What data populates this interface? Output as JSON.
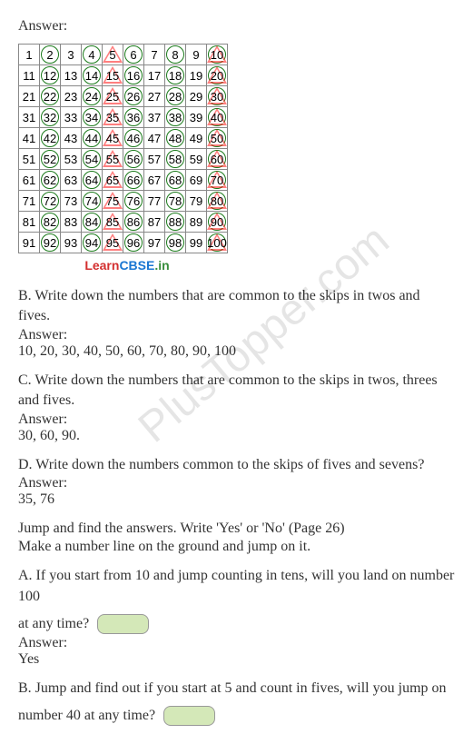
{
  "answer_label": "Answer:",
  "grid": {
    "rows": 10,
    "cols": 10,
    "cell_border_color": "#888",
    "circle_color": "#1a7a1a",
    "triangle_color": "rgba(255,0,0,0.5)"
  },
  "learncbse": {
    "learn": "Learn",
    "cbse": "CBSE",
    "in": ".in"
  },
  "qB": {
    "text": "B. Write down the numbers that are common to the skips in twos and fives.",
    "ans_label": "Answer:",
    "ans": "10, 20, 30, 40, 50, 60, 70, 80, 90, 100"
  },
  "qC": {
    "text": "C. Write down the numbers that are common to the skips in twos, threes and fives.",
    "ans_label": "Answer:",
    "ans": "30, 60, 90."
  },
  "qD": {
    "text": "D. Write down the numbers common to the skips of fives and sevens?",
    "ans_label": "Answer:",
    "ans": "35, 76"
  },
  "jump_intro1": "Jump and find the answers. Write 'Yes' or 'No' (Page 26)",
  "jump_intro2": "Make a number line on the ground and jump on it.",
  "qA2": {
    "text1": "A. If you start from 10 and jump counting in tens, will you land on number 100",
    "text2": "at any time?",
    "ans_label": "Answer:",
    "ans": "Yes"
  },
  "qB2": {
    "text1": "B. Jump and find out if you start at 5 and count in fives, will you jump on",
    "text2": "number 40 at any time?"
  },
  "watermark": "PlusTopper.com"
}
